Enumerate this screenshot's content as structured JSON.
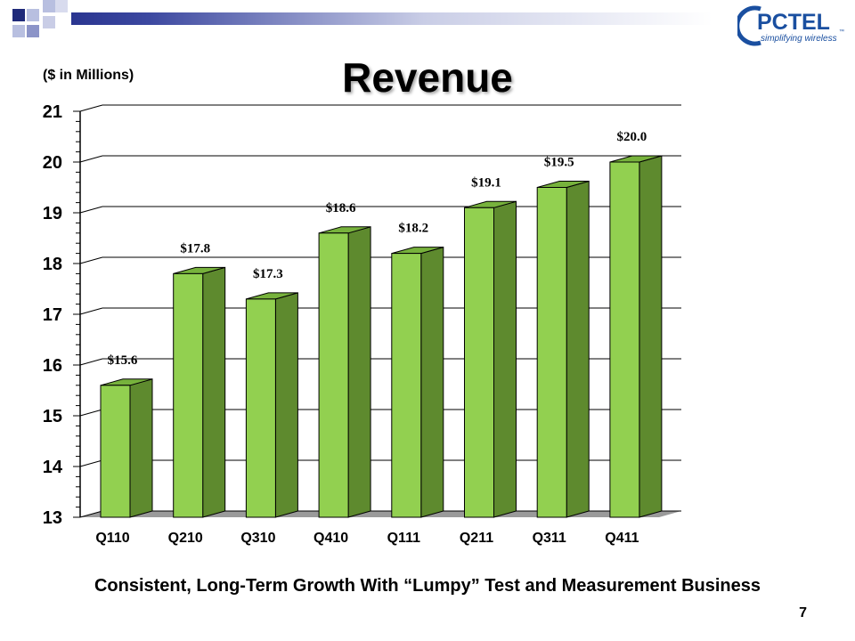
{
  "slide": {
    "units_label": "($ in Millions)",
    "title": "Revenue",
    "footer": "Consistent, Long-Term Growth With “Lumpy” Test  and Measurement Business",
    "page_number": "7"
  },
  "logo": {
    "name": "PCTEL",
    "tm": "™",
    "tagline": "simplifying wireless"
  },
  "colors": {
    "bar_front": "#92d050",
    "bar_side": "#5e8a2e",
    "bar_top": "#77b23c",
    "floor": "#9a9a9a",
    "grid": "#000000",
    "band_dark": "#1f2a7a",
    "band_light": "#b8bfe0",
    "logo_blue": "#1a4fa0"
  },
  "chart_data": {
    "type": "bar",
    "title": "Revenue",
    "ylabel": "($ in Millions)",
    "xlabel": "",
    "categories": [
      "Q110",
      "Q210",
      "Q310",
      "Q410",
      "Q111",
      "Q211",
      "Q311",
      "Q411"
    ],
    "values": [
      15.6,
      17.8,
      17.3,
      18.6,
      18.2,
      19.1,
      19.5,
      20.0
    ],
    "data_labels": [
      "$15.6",
      "$17.8",
      "$17.3",
      "$18.6",
      "$18.2",
      "$19.1",
      "$19.5",
      "$20.0"
    ],
    "ylim": [
      13,
      21
    ],
    "yticks": [
      13,
      14,
      15,
      16,
      17,
      18,
      19,
      20,
      21
    ],
    "grid": true,
    "legend": "none",
    "style": "3d-bar"
  }
}
